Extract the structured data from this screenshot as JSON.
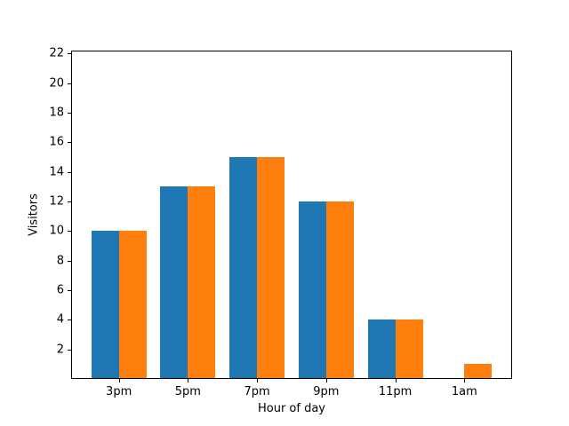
{
  "chart_data": {
    "type": "bar",
    "title": "",
    "xlabel": "Hour of day",
    "ylabel": "Visitors",
    "categories": [
      "3pm",
      "5pm",
      "7pm",
      "9pm",
      "11pm",
      "1am"
    ],
    "series": [
      {
        "name": "series-blue",
        "color": "#1f77b4",
        "values": [
          10,
          13,
          15,
          12,
          4,
          0
        ]
      },
      {
        "name": "series-orange",
        "color": "#ff7f0e",
        "values": [
          10,
          13,
          15,
          12,
          4,
          1
        ]
      }
    ],
    "yticks": [
      2,
      4,
      6,
      8,
      10,
      12,
      14,
      16,
      18,
      20,
      22
    ],
    "ylim": [
      0,
      22.2
    ],
    "grid": false,
    "legend": "none",
    "background_color": "#ffffff",
    "spine_color": "#000000",
    "text_color": "#000000"
  }
}
